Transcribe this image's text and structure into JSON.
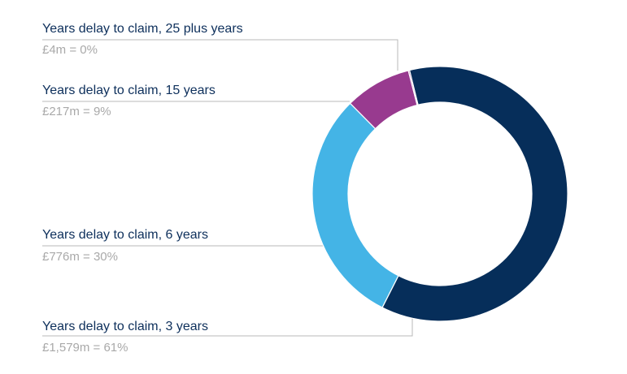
{
  "chart_data": {
    "type": "pie",
    "variant": "donut",
    "title": "",
    "categories": [
      "Years delay to claim, 3 years",
      "Years delay to claim, 6 years",
      "Years delay to claim, 15 years",
      "Years delay to claim, 25 plus years"
    ],
    "values": [
      1579,
      776,
      217,
      4
    ],
    "unit": "£m",
    "percentages": [
      61,
      30,
      9,
      0
    ],
    "colors": [
      "#062e5a",
      "#44b4e6",
      "#983a8f",
      "#983a8f"
    ],
    "legend_position": "left, with leader lines"
  },
  "labels": [
    {
      "title": "Years delay to claim, 25 plus years",
      "value": "£4m = 0%"
    },
    {
      "title": "Years delay to claim, 15 years",
      "value": "£217m = 9%"
    },
    {
      "title": "Years delay to claim, 6 years",
      "value": "£776m = 30%"
    },
    {
      "title": "Years delay to claim, 3 years",
      "value": "£1,579m = 61%"
    }
  ]
}
